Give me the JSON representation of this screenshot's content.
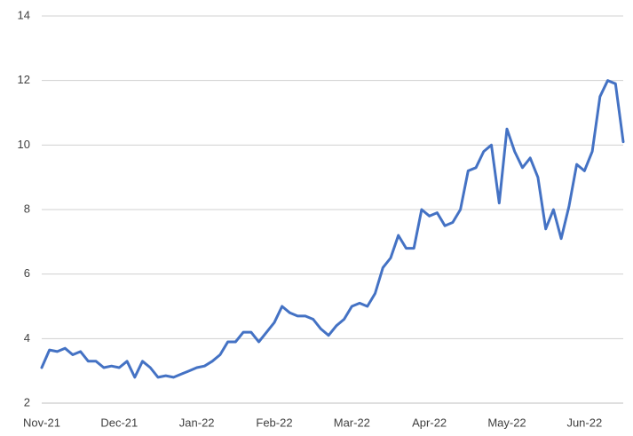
{
  "chart_data": {
    "type": "line",
    "color": "#4472c4",
    "grid": true,
    "categories": [
      "Nov-21",
      null,
      null,
      null,
      null,
      null,
      null,
      null,
      null,
      null,
      "Dec-21",
      null,
      null,
      null,
      null,
      null,
      null,
      null,
      null,
      null,
      "Jan-22",
      null,
      null,
      null,
      null,
      null,
      null,
      null,
      null,
      null,
      "Feb-22",
      null,
      null,
      null,
      null,
      null,
      null,
      null,
      null,
      null,
      "Mar-22",
      null,
      null,
      null,
      null,
      null,
      null,
      null,
      null,
      null,
      "Apr-22",
      null,
      null,
      null,
      null,
      null,
      null,
      null,
      null,
      null,
      "May-22",
      null,
      null,
      null,
      null,
      null,
      null,
      null,
      null,
      null,
      "Jun-22",
      null,
      null,
      null,
      null,
      null
    ],
    "values": [
      3.1,
      3.65,
      3.6,
      3.7,
      3.5,
      3.6,
      3.3,
      3.3,
      3.1,
      3.15,
      3.1,
      3.3,
      2.8,
      3.3,
      3.1,
      2.8,
      2.85,
      2.8,
      2.9,
      3.0,
      3.1,
      3.15,
      3.3,
      3.5,
      3.9,
      3.9,
      4.2,
      4.2,
      3.9,
      4.2,
      4.5,
      5.0,
      4.8,
      4.7,
      4.7,
      4.6,
      4.3,
      4.1,
      4.4,
      4.6,
      5.0,
      5.1,
      5.0,
      5.4,
      6.2,
      6.5,
      7.2,
      6.8,
      6.8,
      8.0,
      7.8,
      7.9,
      7.5,
      7.6,
      8.0,
      9.2,
      9.3,
      9.8,
      10.0,
      8.2,
      10.5,
      9.8,
      9.3,
      9.6,
      9.0,
      7.4,
      8.0,
      7.1,
      8.1,
      9.4,
      9.2,
      9.8,
      11.5,
      12.0,
      11.9,
      10.1
    ],
    "ylim": [
      2,
      14
    ],
    "yticks": [
      2,
      4,
      6,
      8,
      10,
      12,
      14
    ]
  }
}
